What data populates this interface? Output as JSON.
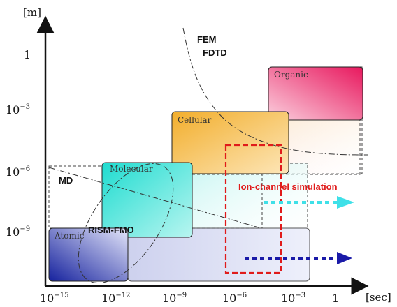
{
  "axes": {
    "x_unit": "[sec]",
    "y_unit": "[m]",
    "x_ticks": [
      {
        "base": "10",
        "exp": "−15"
      },
      {
        "base": "10",
        "exp": "−12"
      },
      {
        "base": "10",
        "exp": "−9"
      },
      {
        "base": "10",
        "exp": "−6"
      },
      {
        "base": "10",
        "exp": "−3"
      },
      {
        "base": "1",
        "exp": ""
      }
    ],
    "y_ticks": [
      {
        "base": "1",
        "exp": ""
      },
      {
        "base": "10",
        "exp": "−3"
      },
      {
        "base": "10",
        "exp": "−6"
      },
      {
        "base": "10",
        "exp": "−9"
      }
    ]
  },
  "regions": {
    "organic": "Organic",
    "cellular": "Cellular",
    "molecular": "Molecular",
    "atomic": "Atomic"
  },
  "methods": {
    "fem": "FEM",
    "fdtd": "FDTD",
    "md": "MD",
    "rism_fmo": "RISM-FMO"
  },
  "highlight": {
    "ion_channel": "Ion-channel simulation"
  },
  "colors": {
    "organic": "#e8185e",
    "cellular": "#f2b43c",
    "molecular": "#2fe0d6",
    "atomic": "#1a2fa8",
    "highlight_red": "#e01b1b",
    "arrow_cyan": "#3fe0e8",
    "arrow_blue": "#1a1aa8"
  }
}
